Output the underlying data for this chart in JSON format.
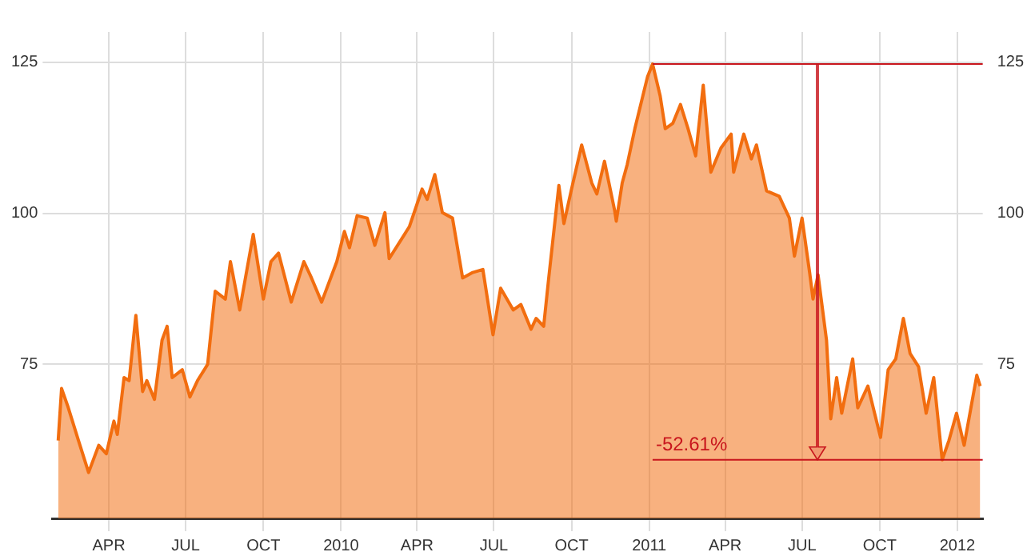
{
  "chart_data": {
    "type": "area",
    "x": [
      "2009-01-31",
      "2009-02-04",
      "2009-02-12",
      "2009-02-24",
      "2009-03-08",
      "2009-03-20",
      "2009-03-29",
      "2009-04-07",
      "2009-04-11",
      "2009-04-19",
      "2009-04-25",
      "2009-05-03",
      "2009-05-11",
      "2009-05-16",
      "2009-05-25",
      "2009-06-03",
      "2009-06-09",
      "2009-06-15",
      "2009-06-27",
      "2009-07-06",
      "2009-07-15",
      "2009-07-27",
      "2009-08-05",
      "2009-08-17",
      "2009-08-23",
      "2009-09-03",
      "2009-09-19",
      "2009-10-01",
      "2009-10-10",
      "2009-10-19",
      "2009-11-03",
      "2009-11-18",
      "2009-11-27",
      "2009-12-09",
      "2009-12-27",
      "2010-01-05",
      "2010-01-11",
      "2010-01-20",
      "2010-02-01",
      "2010-02-10",
      "2010-02-22",
      "2010-02-27",
      "2010-03-23",
      "2010-04-07",
      "2010-04-13",
      "2010-04-22",
      "2010-05-01",
      "2010-05-13",
      "2010-05-25",
      "2010-06-06",
      "2010-06-18",
      "2010-06-30",
      "2010-07-09",
      "2010-07-24",
      "2010-08-02",
      "2010-08-14",
      "2010-08-20",
      "2010-08-29",
      "2010-09-04",
      "2010-09-16",
      "2010-09-22",
      "2010-10-01",
      "2010-10-13",
      "2010-10-25",
      "2010-10-31",
      "2010-11-09",
      "2010-11-21",
      "2010-11-23",
      "2010-11-30",
      "2010-12-06",
      "2010-12-15",
      "2010-12-30",
      "2011-01-05",
      "2011-01-14",
      "2011-01-20",
      "2011-01-29",
      "2011-02-07",
      "2011-02-16",
      "2011-02-25",
      "2011-03-06",
      "2011-03-15",
      "2011-03-27",
      "2011-04-08",
      "2011-04-11",
      "2011-04-23",
      "2011-05-02",
      "2011-05-08",
      "2011-05-20",
      "2011-06-04",
      "2011-06-16",
      "2011-06-22",
      "2011-07-01",
      "2011-07-10",
      "2011-07-14",
      "2011-07-20",
      "2011-07-30",
      "2011-08-04",
      "2011-08-11",
      "2011-08-17",
      "2011-08-30",
      "2011-09-05",
      "2011-09-17",
      "2011-10-02",
      "2011-10-11",
      "2011-10-20",
      "2011-10-29",
      "2011-11-06",
      "2011-11-16",
      "2011-11-25",
      "2011-12-04",
      "2011-12-14",
      "2011-12-22",
      "2011-12-31",
      "2012-01-09",
      "2012-01-24",
      "2012-01-28"
    ],
    "series": [
      {
        "color": "#f26d0f",
        "values": [
          62.4,
          71.0,
          67.8,
          62.4,
          57.1,
          61.6,
          60.2,
          65.6,
          63.4,
          72.8,
          72.3,
          83.1,
          70.5,
          72.3,
          69.2,
          79.0,
          81.3,
          72.8,
          74.1,
          69.6,
          72.3,
          75.0,
          87.1,
          85.8,
          92.0,
          84.0,
          96.5,
          85.8,
          92.0,
          93.4,
          85.3,
          92.0,
          89.3,
          85.3,
          92.0,
          97.0,
          94.3,
          99.6,
          99.2,
          94.7,
          100.1,
          92.5,
          97.8,
          104.0,
          102.3,
          106.4,
          100.1,
          99.2,
          89.3,
          90.2,
          90.7,
          79.9,
          87.6,
          84.0,
          84.9,
          80.8,
          82.6,
          81.3,
          89.3,
          104.6,
          98.3,
          104.0,
          111.3,
          105.0,
          103.2,
          108.6,
          100.5,
          98.7,
          105.0,
          108.1,
          114.0,
          122.6,
          124.7,
          119.4,
          114.0,
          114.9,
          118.0,
          114.0,
          109.5,
          121.2,
          106.8,
          110.8,
          113.1,
          106.8,
          113.1,
          109.0,
          111.3,
          103.7,
          102.8,
          99.2,
          92.9,
          99.2,
          90.2,
          85.8,
          89.8,
          79.0,
          66.0,
          72.8,
          66.9,
          75.9,
          67.8,
          71.4,
          62.9,
          74.1,
          75.9,
          82.6,
          76.8,
          74.6,
          66.9,
          72.8,
          59.2,
          62.4,
          66.9,
          61.6,
          73.2,
          71.4
        ]
      }
    ],
    "xlim": [
      "2009-01-24",
      "2012-01-31"
    ],
    "xticks": [
      {
        "value": "2009-04-01",
        "label": "APR"
      },
      {
        "value": "2009-07-01",
        "label": "JUL"
      },
      {
        "value": "2009-10-01",
        "label": "OCT"
      },
      {
        "value": "2010-01-01",
        "label": "2010"
      },
      {
        "value": "2010-04-01",
        "label": "APR"
      },
      {
        "value": "2010-07-01",
        "label": "JUL"
      },
      {
        "value": "2010-10-01",
        "label": "OCT"
      },
      {
        "value": "2011-01-01",
        "label": "2011"
      },
      {
        "value": "2011-04-01",
        "label": "APR"
      },
      {
        "value": "2011-07-01",
        "label": "JUL"
      },
      {
        "value": "2011-10-01",
        "label": "OCT"
      },
      {
        "value": "2012-01-01",
        "label": "2012"
      }
    ],
    "ylim": [
      49.5,
      130
    ],
    "yticks": [
      75,
      100,
      125
    ],
    "y2lim": [
      49.5,
      130
    ],
    "y2ticks": [
      75,
      100,
      125
    ],
    "grid": true,
    "ref_lines": [
      {
        "axis": "y",
        "value": 124.7,
        "color": "#c8161d"
      },
      {
        "axis": "y",
        "value": 59.2,
        "color": "#c8161d"
      }
    ],
    "annotations": [
      "-52.61%"
    ]
  }
}
